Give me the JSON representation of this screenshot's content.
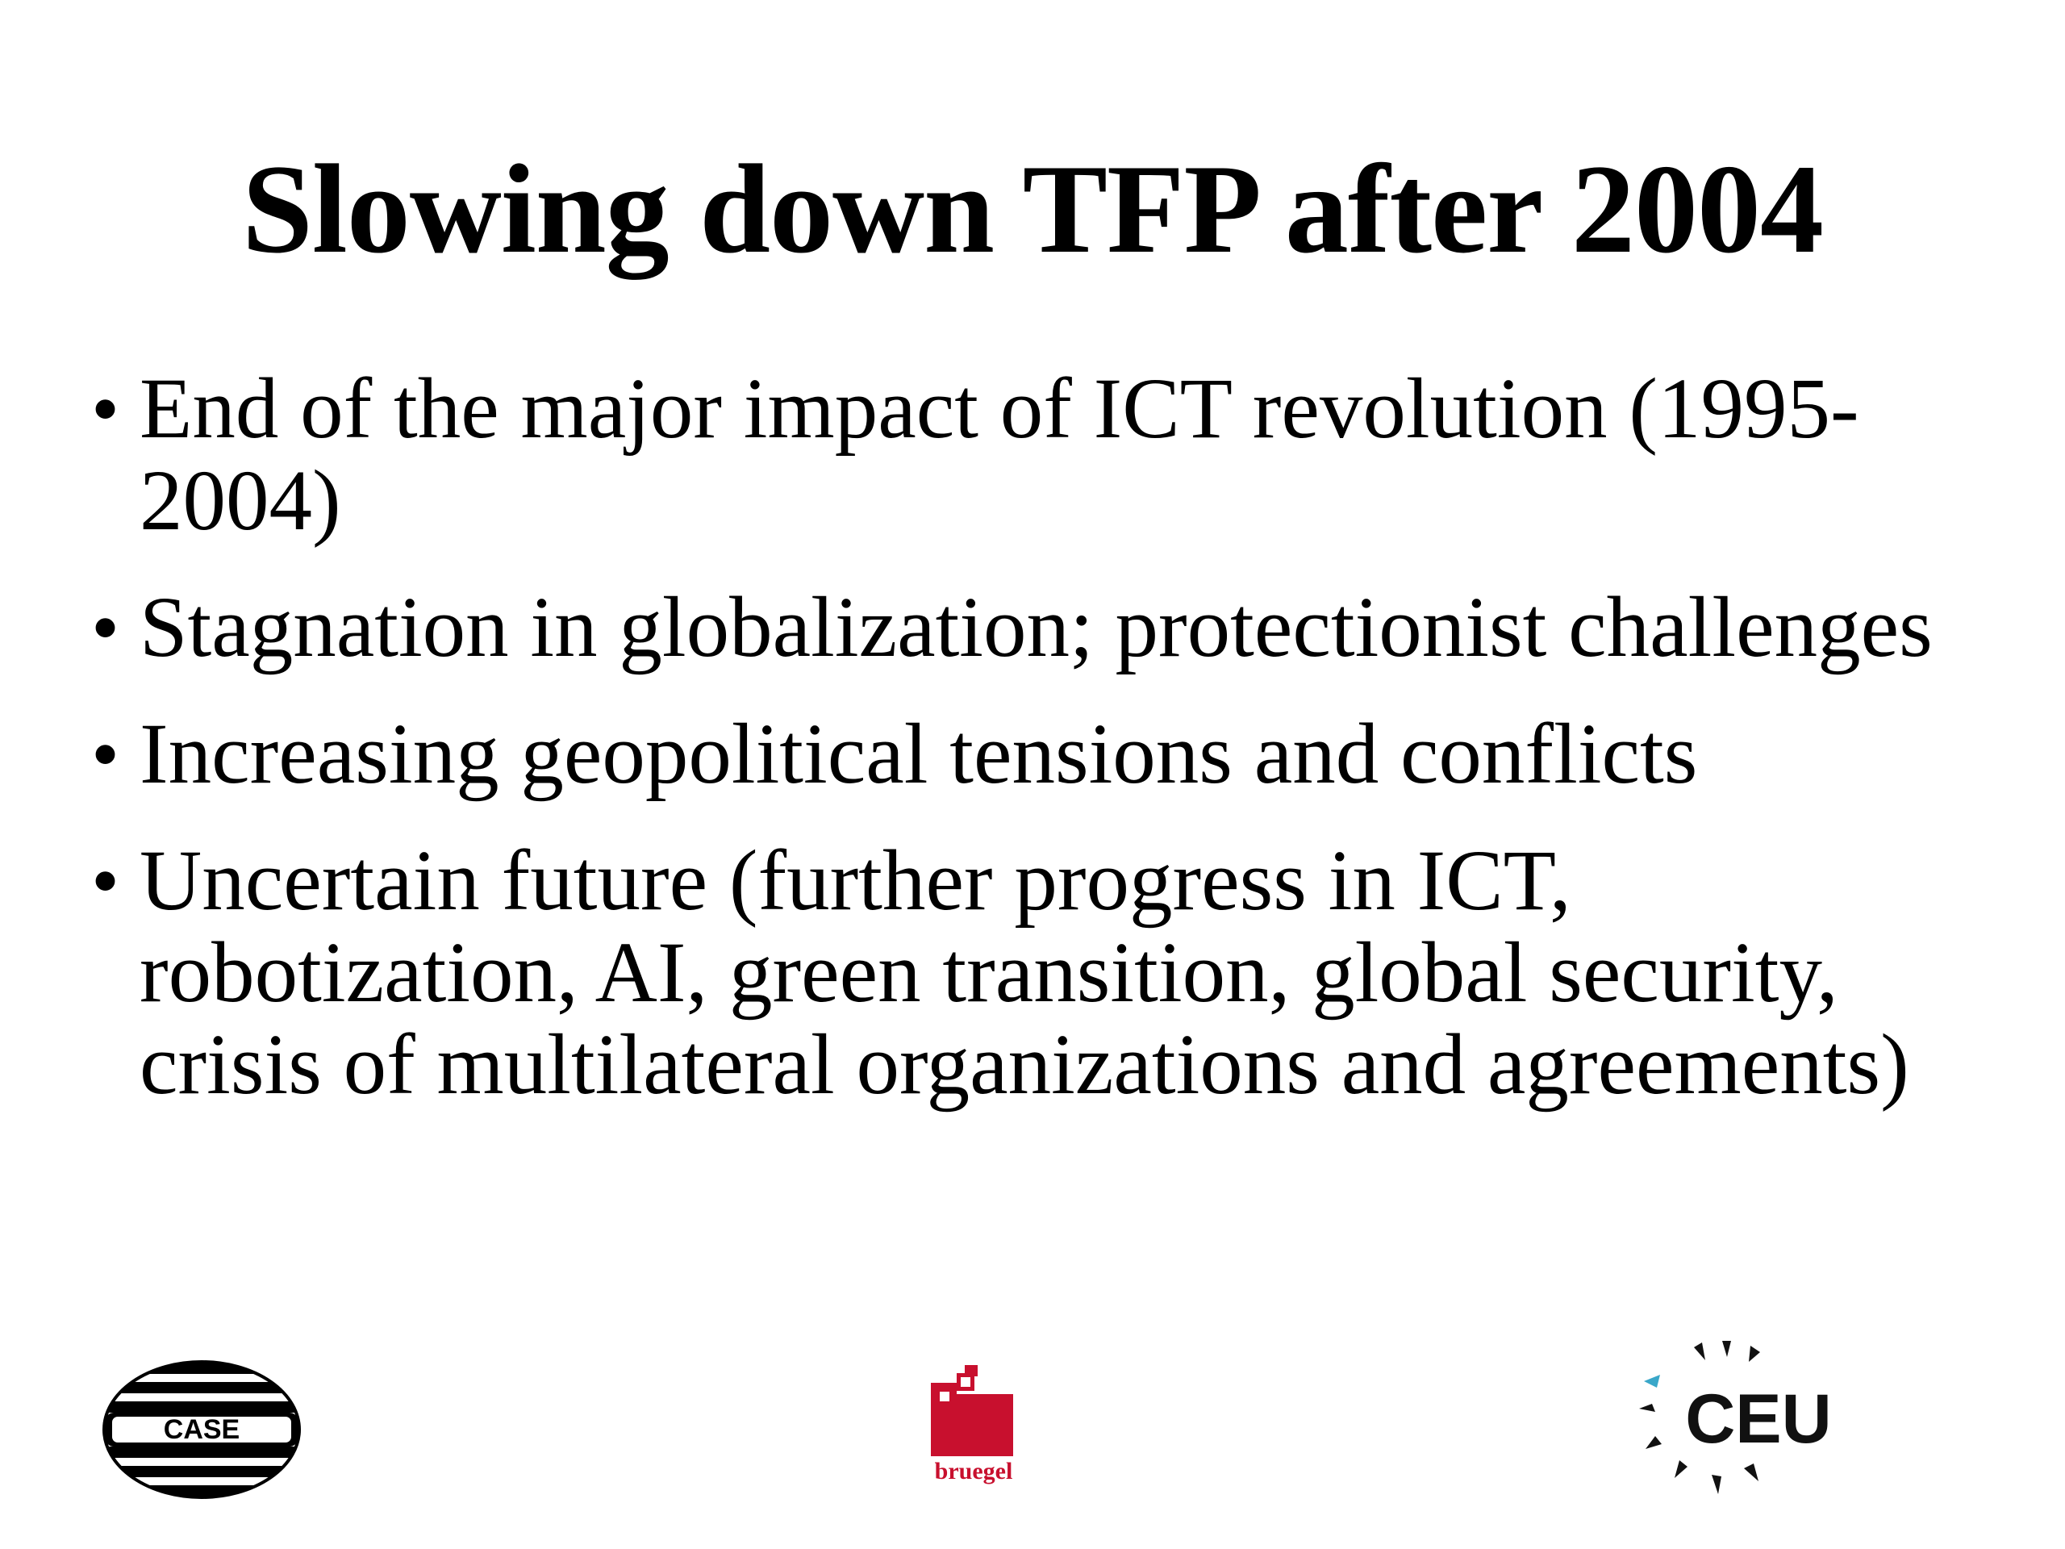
{
  "slide": {
    "title": "Slowing down TFP after 2004",
    "bullets": [
      {
        "lines": [
          "End of the major impact of ICT revolution (1995-",
          "2004)"
        ]
      },
      {
        "lines": [
          "Stagnation in globalization; protectionist challenges"
        ]
      },
      {
        "lines": [
          "Increasing geopolitical tensions and conflicts"
        ]
      },
      {
        "lines": [
          "Uncertain future (further progress in ICT,",
          "robotization, AI, green transition, global security,",
          "crisis of multilateral organizations and agreements)"
        ]
      }
    ],
    "bullet_symbol": "•"
  },
  "logos": {
    "case": {
      "text": "CASE",
      "color": "#000000"
    },
    "bruegel": {
      "text": "bruegel",
      "color": "#c8102e"
    },
    "ceu": {
      "text": "CEU",
      "color": "#111111",
      "accent": "#3aa7c9"
    }
  }
}
